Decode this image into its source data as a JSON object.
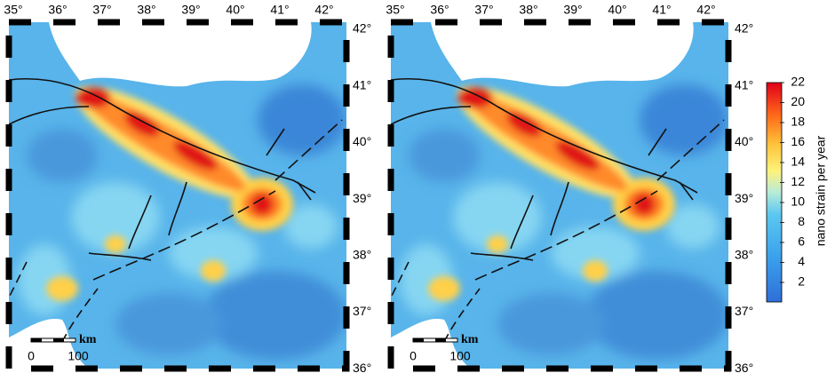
{
  "panels": [
    {
      "longitude_labels": [
        "35°",
        "36°",
        "37°",
        "38°",
        "39°",
        "40°",
        "41°",
        "42°"
      ],
      "latitude_labels": [
        "42°",
        "41°",
        "40°",
        "39°",
        "38°",
        "37°",
        "36°"
      ],
      "scale_bar": {
        "start": 0,
        "end": 100,
        "unit": "km"
      }
    },
    {
      "longitude_labels": [
        "35°",
        "36°",
        "37°",
        "38°",
        "39°",
        "40°",
        "41°",
        "42°"
      ],
      "latitude_labels": [
        "42°",
        "41°",
        "40°",
        "39°",
        "38°",
        "37°",
        "36°"
      ],
      "scale_bar": {
        "start": 0,
        "end": 100,
        "unit": "km"
      }
    }
  ],
  "colorbar": {
    "label": "nano strain per year",
    "ticks": [
      2,
      4,
      6,
      8,
      10,
      12,
      14,
      16,
      18,
      20,
      22
    ]
  }
}
